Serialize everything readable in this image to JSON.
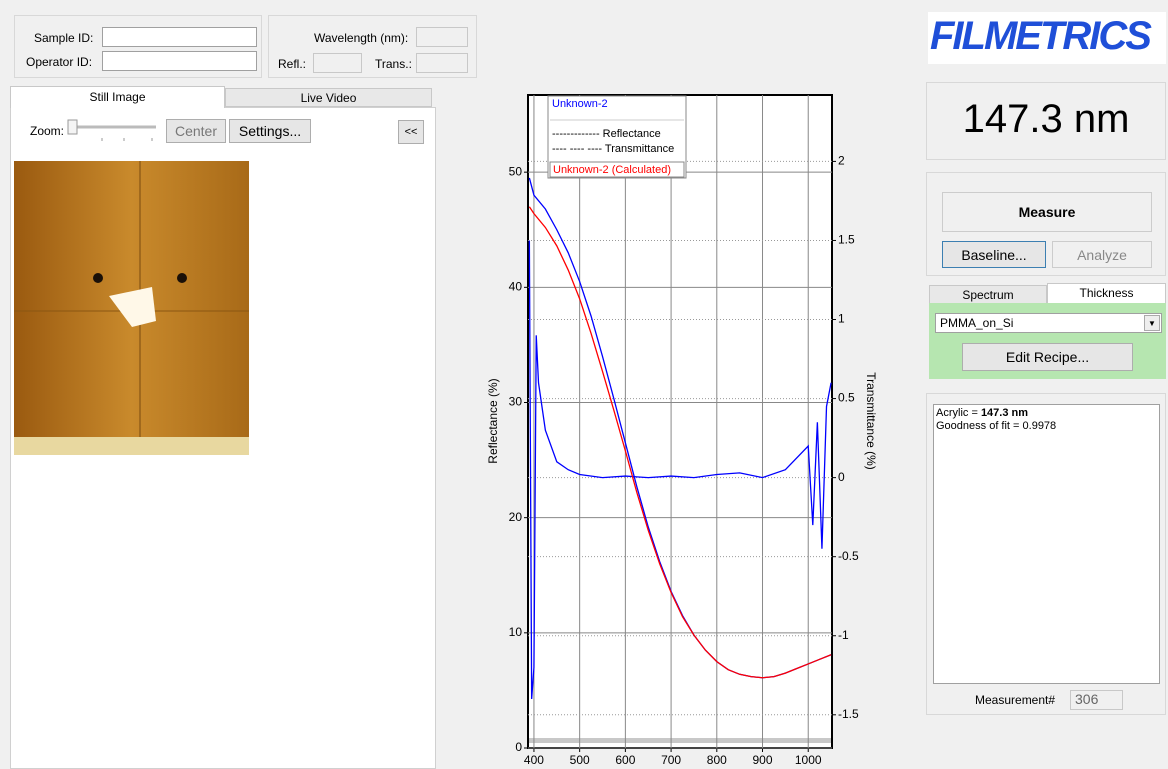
{
  "header": {
    "sample_id_label": "Sample ID:",
    "operator_id_label": "Operator ID:",
    "wavelength_label": "Wavelength (nm):",
    "refl_label": "Refl.:",
    "trans_label": "Trans.:"
  },
  "left_panel": {
    "tabs": [
      "Still Image",
      "Live Video"
    ],
    "zoom_label": "Zoom:",
    "center_button": "Center",
    "settings_button": "Settings...",
    "collapse_button": "<<"
  },
  "right_panel": {
    "logo": "FILMETRICS",
    "result": "147.3 nm",
    "measure_button": "Measure",
    "baseline_button": "Baseline...",
    "analyze_button": "Analyze",
    "tabs": [
      "Spectrum",
      "Thickness"
    ],
    "recipe": "PMMA_on_Si",
    "edit_recipe_button": "Edit Recipe...",
    "results_text": {
      "layer": "Acrylic = ",
      "thickness": "147.3 nm",
      "goodness": "Goodness of fit = 0.9978"
    },
    "measurement_label": "Measurement#",
    "measurement_number": "306"
  },
  "chart_data": {
    "type": "line",
    "y_label": "Reflectance (%)",
    "y2_label": "Transmittance (%)",
    "x": [
      390,
      400,
      425,
      450,
      475,
      500,
      525,
      550,
      575,
      600,
      625,
      650,
      675,
      700,
      725,
      750,
      775,
      800,
      825,
      850,
      875,
      900,
      925,
      950,
      975,
      1000,
      1025,
      1050
    ],
    "series": [
      {
        "name": "Unknown-2",
        "color": "#0000ff",
        "values": [
          49.5,
          48,
          46.8,
          45,
          43,
          40.5,
          37.5,
          34,
          30.3,
          26.5,
          22.7,
          19.2,
          16.2,
          13.6,
          11.5,
          9.8,
          8.5,
          7.5,
          6.8,
          6.4,
          6.2,
          6.1,
          6.2,
          6.5,
          6.9,
          7.3,
          7.7,
          8.1
        ]
      },
      {
        "name": "Unknown-2 (Calculated)",
        "color": "#ff0000",
        "values": [
          47,
          46.4,
          45.2,
          43.6,
          41.5,
          39,
          36,
          32.7,
          29.3,
          25.8,
          22.2,
          18.9,
          16,
          13.5,
          11.4,
          9.8,
          8.5,
          7.5,
          6.8,
          6.4,
          6.2,
          6.1,
          6.2,
          6.5,
          6.9,
          7.3,
          7.7,
          8.1
        ]
      }
    ],
    "transmittance_series": {
      "color": "#0000ff",
      "axis": "y2",
      "x": [
        390,
        395,
        400,
        405,
        410,
        425,
        450,
        475,
        500,
        550,
        600,
        650,
        700,
        750,
        800,
        850,
        900,
        950,
        1000,
        1010,
        1020,
        1030,
        1040,
        1050
      ],
      "values": [
        1.5,
        -1.4,
        -1.2,
        0.9,
        0.6,
        0.3,
        0.1,
        0.05,
        0.02,
        0,
        0.01,
        0,
        0.01,
        0,
        0.02,
        0.03,
        0,
        0.05,
        0.2,
        -0.3,
        0.35,
        -0.45,
        0.45,
        0.6
      ]
    },
    "legend_notes": [
      "------------- Reflectance",
      "---- ---- ---- Transmittance"
    ],
    "xlim": [
      387,
      1052
    ],
    "xticks": [
      400,
      500,
      600,
      700,
      800,
      900,
      1000
    ],
    "ylim": [
      0,
      56.7
    ],
    "yticks": [
      0,
      10,
      20,
      30,
      40,
      50
    ],
    "y2lim": [
      -1.71,
      2.42
    ],
    "y2ticks": [
      -1.5,
      -1,
      -0.5,
      0,
      0.5,
      1,
      1.5,
      2
    ],
    "grid": true
  }
}
